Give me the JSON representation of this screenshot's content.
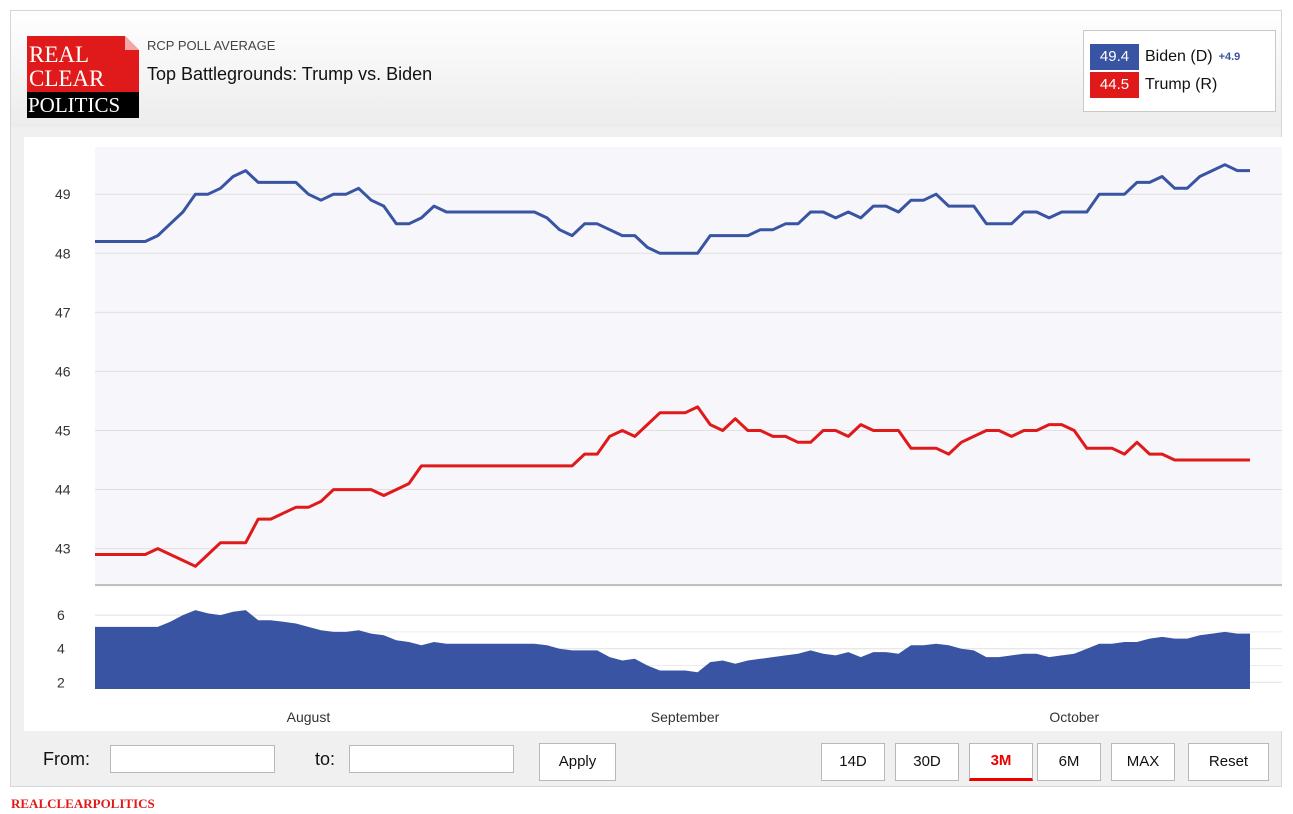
{
  "header": {
    "subtitle": "RCP POLL AVERAGE",
    "title": "Top Battlegrounds: Trump vs. Biden",
    "logo_lines": [
      "REAL",
      "CLEAR",
      "POLITICS"
    ]
  },
  "legend": [
    {
      "value": "49.4",
      "name": "Biden (D)",
      "spread": "+4.9",
      "color": "#3a54a4"
    },
    {
      "value": "44.5",
      "name": "Trump (R)",
      "spread": "",
      "color": "#e01a1a"
    }
  ],
  "controls": {
    "from_label": "From:",
    "to_label": "to:",
    "from_value": "",
    "to_value": "",
    "apply": "Apply",
    "ranges": [
      "14D",
      "30D",
      "3M",
      "6M",
      "MAX"
    ],
    "active_range": "3M",
    "reset": "Reset"
  },
  "footer_brand": "REALCLEARPOLITICS",
  "colors": {
    "biden": "#3a54a4",
    "trump": "#e01a1a",
    "spread": "#3a54a4"
  },
  "chart_data": [
    {
      "type": "line",
      "ylim": [
        42.35,
        49.8
      ],
      "yticks": [
        43,
        44,
        45,
        46,
        47,
        48,
        49
      ],
      "xtick_labels": [
        "August",
        "September",
        "October"
      ],
      "xtick_index": [
        17,
        47,
        78
      ],
      "grid": true,
      "series": [
        {
          "name": "Biden (D)",
          "color": "#3a54a4",
          "values": [
            48.2,
            48.2,
            48.2,
            48.2,
            48.2,
            48.3,
            48.5,
            48.7,
            49.0,
            49.0,
            49.1,
            49.3,
            49.4,
            49.2,
            49.2,
            49.2,
            49.2,
            49.0,
            48.9,
            49.0,
            49.0,
            49.1,
            48.9,
            48.8,
            48.5,
            48.5,
            48.6,
            48.8,
            48.7,
            48.7,
            48.7,
            48.7,
            48.7,
            48.7,
            48.7,
            48.7,
            48.6,
            48.4,
            48.3,
            48.5,
            48.5,
            48.4,
            48.3,
            48.3,
            48.1,
            48.0,
            48.0,
            48.0,
            48.0,
            48.3,
            48.3,
            48.3,
            48.3,
            48.4,
            48.4,
            48.5,
            48.5,
            48.7,
            48.7,
            48.6,
            48.7,
            48.6,
            48.8,
            48.8,
            48.7,
            48.9,
            48.9,
            49.0,
            48.8,
            48.8,
            48.8,
            48.5,
            48.5,
            48.5,
            48.7,
            48.7,
            48.6,
            48.7,
            48.7,
            48.7,
            49.0,
            49.0,
            49.0,
            49.2,
            49.2,
            49.3,
            49.1,
            49.1,
            49.3,
            49.4,
            49.5,
            49.4,
            49.4
          ]
        },
        {
          "name": "Trump (R)",
          "color": "#e01a1a",
          "values": [
            42.9,
            42.9,
            42.9,
            42.9,
            42.9,
            43.0,
            42.9,
            42.8,
            42.7,
            42.9,
            43.1,
            43.1,
            43.1,
            43.5,
            43.5,
            43.6,
            43.7,
            43.7,
            43.8,
            44.0,
            44.0,
            44.0,
            44.0,
            43.9,
            44.0,
            44.1,
            44.4,
            44.4,
            44.4,
            44.4,
            44.4,
            44.4,
            44.4,
            44.4,
            44.4,
            44.4,
            44.4,
            44.4,
            44.4,
            44.6,
            44.6,
            44.9,
            45.0,
            44.9,
            45.1,
            45.3,
            45.3,
            45.3,
            45.4,
            45.1,
            45.0,
            45.2,
            45.0,
            45.0,
            44.9,
            44.9,
            44.8,
            44.8,
            45.0,
            45.0,
            44.9,
            45.1,
            45.0,
            45.0,
            45.0,
            44.7,
            44.7,
            44.7,
            44.6,
            44.8,
            44.9,
            45.0,
            45.0,
            44.9,
            45.0,
            45.0,
            45.1,
            45.1,
            45.0,
            44.7,
            44.7,
            44.7,
            44.6,
            44.8,
            44.6,
            44.6,
            44.5,
            44.5,
            44.5,
            44.5,
            44.5,
            44.5,
            44.5
          ]
        }
      ]
    },
    {
      "type": "area",
      "ylim": [
        1.6,
        6.9
      ],
      "yticks": [
        2,
        4,
        6
      ],
      "series": [
        {
          "name": "",
          "color": "#3a54a4",
          "values": [
            5.3,
            5.3,
            5.3,
            5.3,
            5.3,
            5.3,
            5.6,
            6.0,
            6.3,
            6.1,
            6.0,
            6.2,
            6.3,
            5.7,
            5.7,
            5.6,
            5.5,
            5.3,
            5.1,
            5.0,
            5.0,
            5.1,
            4.9,
            4.8,
            4.5,
            4.4,
            4.2,
            4.4,
            4.3,
            4.3,
            4.3,
            4.3,
            4.3,
            4.3,
            4.3,
            4.3,
            4.2,
            4.0,
            3.9,
            3.9,
            3.9,
            3.5,
            3.3,
            3.4,
            3.0,
            2.7,
            2.7,
            2.7,
            2.6,
            3.2,
            3.3,
            3.1,
            3.3,
            3.4,
            3.5,
            3.6,
            3.7,
            3.9,
            3.7,
            3.6,
            3.8,
            3.5,
            3.8,
            3.8,
            3.7,
            4.2,
            4.2,
            4.3,
            4.2,
            4.0,
            3.9,
            3.5,
            3.5,
            3.6,
            3.7,
            3.7,
            3.5,
            3.6,
            3.7,
            4.0,
            4.3,
            4.3,
            4.4,
            4.4,
            4.6,
            4.7,
            4.6,
            4.6,
            4.8,
            4.9,
            5.0,
            4.9,
            4.9
          ]
        }
      ]
    }
  ]
}
